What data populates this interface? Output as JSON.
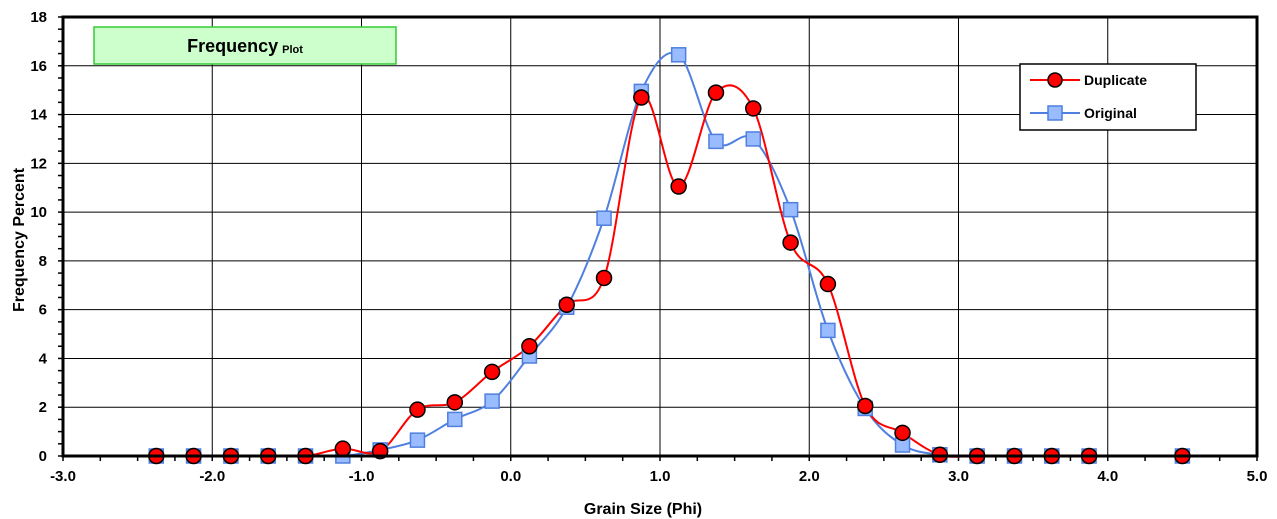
{
  "chart_data": {
    "type": "line",
    "title": "Frequency",
    "title_suffix": "Plot",
    "xlabel": "Grain Size (Phi)",
    "ylabel": "Frequency Percent",
    "xlim": [
      -3.0,
      5.0
    ],
    "ylim": [
      0,
      18
    ],
    "xticks": [
      "-3.0",
      "-2.0",
      "-1.0",
      "0.0",
      "1.0",
      "2.0",
      "3.0",
      "4.0",
      "5.0"
    ],
    "yticks": [
      "0",
      "2",
      "4",
      "6",
      "8",
      "10",
      "12",
      "14",
      "16",
      "18"
    ],
    "grid": true,
    "legend_position": "top-right",
    "series": [
      {
        "name": "Duplicate",
        "color": "#ff0000",
        "marker": "circle",
        "x": [
          -2.375,
          -2.125,
          -1.875,
          -1.625,
          -1.375,
          -1.125,
          -0.875,
          -0.625,
          -0.375,
          -0.125,
          0.125,
          0.375,
          0.625,
          0.875,
          1.125,
          1.375,
          1.625,
          1.875,
          2.125,
          2.375,
          2.625,
          2.875,
          3.125,
          3.375,
          3.625,
          3.875,
          4.5
        ],
        "values": [
          0,
          0,
          0,
          0,
          0,
          0.3,
          0.2,
          1.9,
          2.2,
          3.45,
          4.5,
          6.2,
          7.3,
          14.7,
          11.05,
          14.9,
          14.25,
          8.75,
          7.05,
          2.05,
          0.95,
          0.05,
          0,
          0,
          0,
          0,
          0
        ]
      },
      {
        "name": "Original",
        "color": "#4f7fdf",
        "marker": "square",
        "x": [
          -2.375,
          -2.125,
          -1.875,
          -1.625,
          -1.375,
          -1.125,
          -0.875,
          -0.625,
          -0.375,
          -0.125,
          0.125,
          0.375,
          0.625,
          0.875,
          1.125,
          1.375,
          1.625,
          1.875,
          2.125,
          2.375,
          2.625,
          2.875,
          3.125,
          3.375,
          3.625,
          3.875,
          4.5
        ],
        "values": [
          0,
          0,
          0,
          0,
          0,
          0,
          0.25,
          0.65,
          1.5,
          2.25,
          4.1,
          6.1,
          9.75,
          14.95,
          16.45,
          12.9,
          13.0,
          10.1,
          5.15,
          1.95,
          0.45,
          0.05,
          0,
          0,
          0,
          0,
          0
        ]
      }
    ]
  }
}
